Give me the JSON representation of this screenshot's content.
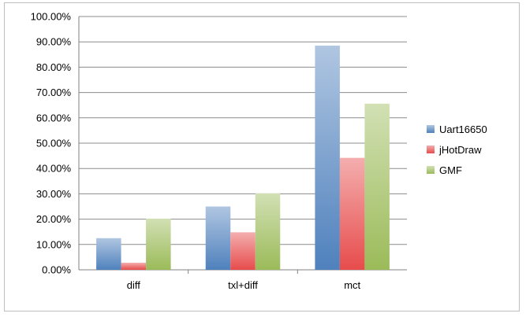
{
  "chart_data": {
    "type": "bar",
    "categories": [
      "diff",
      "txl+diff",
      "mct"
    ],
    "series": [
      {
        "name": "Uart16650",
        "values": [
          12.5,
          25.0,
          88.5
        ],
        "color": "#4f81bd"
      },
      {
        "name": "jHotDraw",
        "values": [
          2.8,
          14.8,
          44.2
        ],
        "color": "#e74c4c"
      },
      {
        "name": "GMF",
        "values": [
          20.2,
          30.2,
          65.6
        ],
        "color": "#9bbb59"
      }
    ],
    "ylim": [
      0,
      100
    ],
    "yticks": [
      "0.00%",
      "10.00%",
      "20.00%",
      "30.00%",
      "40.00%",
      "50.00%",
      "60.00%",
      "70.00%",
      "80.00%",
      "90.00%",
      "100.00%"
    ],
    "grid": true,
    "legend_position": "right"
  }
}
